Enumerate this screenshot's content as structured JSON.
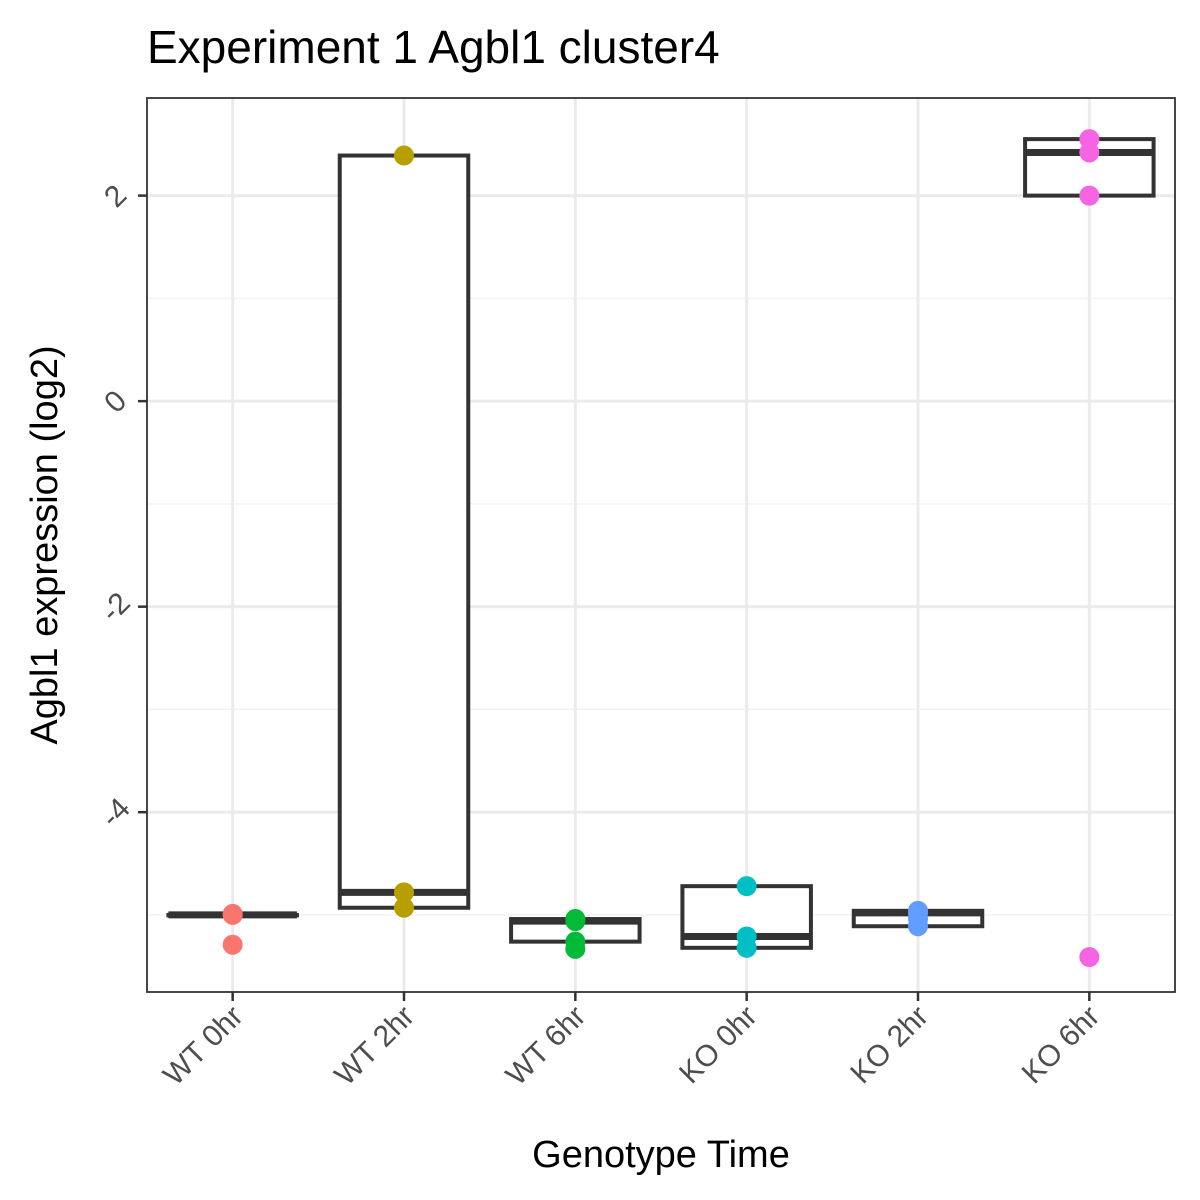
{
  "chart_data": {
    "type": "box",
    "title": "Experiment 1 Agbl1 cluster4",
    "xlabel": "Genotype Time",
    "ylabel": "Agbl1 expression (log2)",
    "ylim": [
      -5.75,
      2.95
    ],
    "y_ticks": [
      2,
      0,
      -2,
      -4
    ],
    "y_tick_labels": [
      "2",
      "0",
      "-2",
      "-4"
    ],
    "grid": true,
    "categories": [
      "WT 0hr",
      "WT 2hr",
      "WT 6hr",
      "KO 0hr",
      "KO 2hr",
      "KO 6hr"
    ],
    "series": [
      {
        "category": "WT 0hr",
        "color": "#F8766D",
        "q1": -5.0,
        "median": -5.0,
        "q3": -5.0,
        "points": [
          -4.99,
          -5.0,
          -5.29
        ]
      },
      {
        "category": "WT 2hr",
        "color": "#B79F00",
        "q1": -4.93,
        "median": -4.78,
        "q3": 2.39,
        "points": [
          2.39,
          -4.78,
          -4.93
        ]
      },
      {
        "category": "WT 6hr",
        "color": "#00BA38",
        "q1": -5.26,
        "median": -5.06,
        "q3": -5.04,
        "points": [
          -5.04,
          -5.06,
          -5.26,
          -5.33
        ]
      },
      {
        "category": "KO 0hr",
        "color": "#00BFC4",
        "q1": -5.32,
        "median": -5.21,
        "q3": -4.72,
        "points": [
          -4.72,
          -5.21,
          -5.32
        ]
      },
      {
        "category": "KO 2hr",
        "color": "#619CFF",
        "q1": -5.11,
        "median": -4.98,
        "q3": -4.96,
        "points": [
          -4.96,
          -4.98,
          -5.04,
          -5.11
        ]
      },
      {
        "category": "KO 6hr",
        "color": "#F564E3",
        "q1": 2.0,
        "median": 2.42,
        "q3": 2.55,
        "points": [
          2.55,
          2.42,
          2.0,
          -5.41
        ]
      }
    ]
  }
}
